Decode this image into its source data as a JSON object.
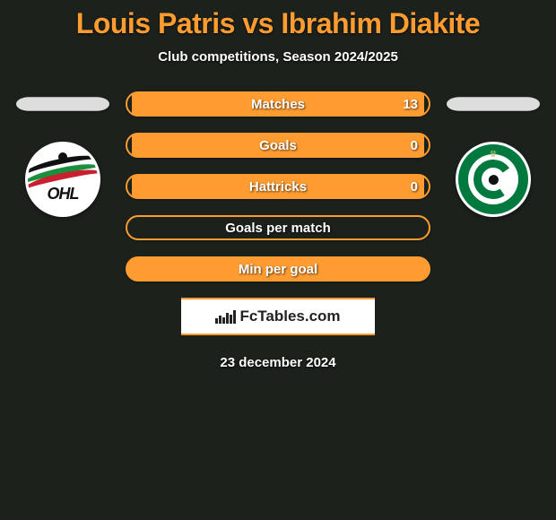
{
  "title": "Louis Patris vs Ibrahim Diakite",
  "subtitle": "Club competitions, Season 2024/2025",
  "colors": {
    "accent": "#fe9c31",
    "background": "#1c211c",
    "text": "#ffffff"
  },
  "left_player": {
    "name": "Louis Patris",
    "club_logo": "ohl-logo",
    "club_logo_text": "OHL"
  },
  "right_player": {
    "name": "Ibrahim Diakite",
    "club_logo": "cercle-brugge-logo"
  },
  "stats": [
    {
      "label": "Matches",
      "right_value": "13",
      "filled": true,
      "fill_style": "partial"
    },
    {
      "label": "Goals",
      "right_value": "0",
      "filled": true,
      "fill_style": "partial"
    },
    {
      "label": "Hattricks",
      "right_value": "0",
      "filled": true,
      "fill_style": "partial"
    },
    {
      "label": "Goals per match",
      "right_value": "",
      "filled": false,
      "fill_style": "none"
    },
    {
      "label": "Min per goal",
      "right_value": "",
      "filled": true,
      "fill_style": "full"
    }
  ],
  "brand": {
    "text": "FcTables.com"
  },
  "date": "23 december 2024"
}
